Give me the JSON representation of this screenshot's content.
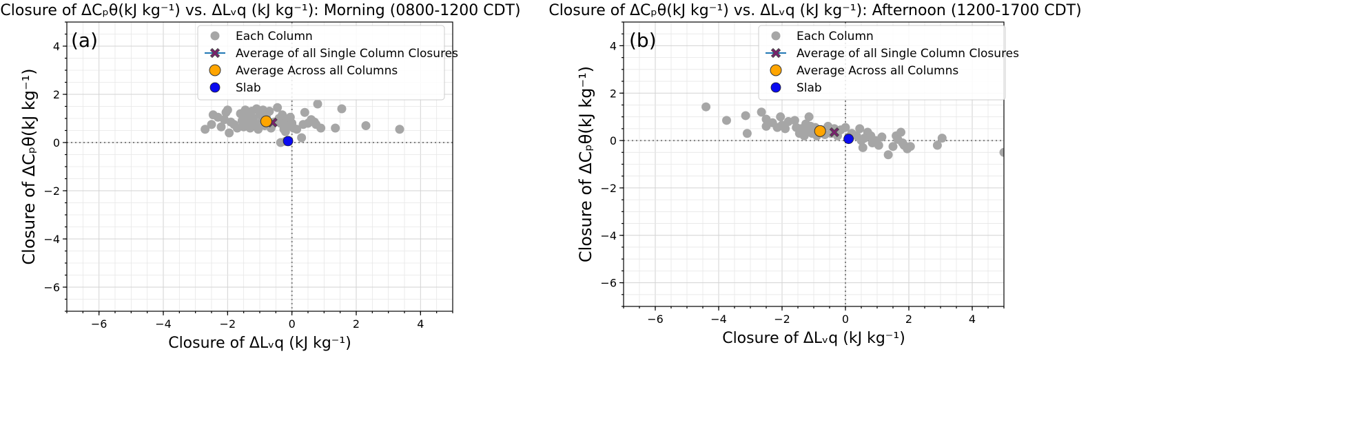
{
  "colors": {
    "each_column": "#a6a6a6",
    "avg_single": "#7a1f6e",
    "avg_single_edge": "#4a4a4a",
    "avg_line": "#1f77b4",
    "avg_across": "#ffa500",
    "slab": "#0a0af0"
  },
  "chart_data": [
    {
      "type": "scatter",
      "panel_label": "(a)",
      "title": "Closure of ΔCₚθ(kJ kg⁻¹) vs. ΔLᵥq (kJ kg⁻¹): Morning (0800-1200 CDT)",
      "xlabel": "Closure of ΔLᵥq (kJ kg⁻¹)",
      "ylabel": "Closure of ΔCₚθ(kJ kg⁻¹)",
      "xlim": [
        -7,
        5
      ],
      "ylim": [
        -7,
        5
      ],
      "xticks": [
        -6,
        -4,
        -2,
        0,
        2,
        4
      ],
      "yticks": [
        -6,
        -4,
        -2,
        0,
        2,
        4
      ],
      "grid": true,
      "legend_position": "upper-center",
      "legend": [
        "Each Column",
        "Average of all Single Column Closures",
        " Average Across all Columns",
        "Slab"
      ],
      "series": [
        {
          "name": "Each Column",
          "points": [
            [
              -2.7,
              0.55
            ],
            [
              -2.5,
              0.75
            ],
            [
              -2.45,
              1.15
            ],
            [
              -2.3,
              1.05
            ],
            [
              -2.2,
              0.65
            ],
            [
              -2.1,
              0.95
            ],
            [
              -2.05,
              1.25
            ],
            [
              -2.0,
              1.35
            ],
            [
              -1.95,
              0.4
            ],
            [
              -1.9,
              0.85
            ],
            [
              -1.8,
              0.75
            ],
            [
              -1.7,
              0.6
            ],
            [
              -1.6,
              1.2
            ],
            [
              -1.55,
              0.9
            ],
            [
              -1.5,
              0.65
            ],
            [
              -1.45,
              1.35
            ],
            [
              -1.4,
              1.05
            ],
            [
              -1.35,
              0.8
            ],
            [
              -1.3,
              0.6
            ],
            [
              -1.25,
              1.3
            ],
            [
              -1.2,
              1.0
            ],
            [
              -1.15,
              0.75
            ],
            [
              -1.1,
              1.4
            ],
            [
              -1.05,
              0.55
            ],
            [
              -1.0,
              1.15
            ],
            [
              -0.95,
              0.85
            ],
            [
              -0.9,
              1.35
            ],
            [
              -0.85,
              0.7
            ],
            [
              -0.8,
              1.1
            ],
            [
              -0.7,
              1.3
            ],
            [
              -0.65,
              0.6
            ],
            [
              -0.55,
              0.85
            ],
            [
              -0.45,
              1.45
            ],
            [
              -0.4,
              1.0
            ],
            [
              -0.35,
              0.8
            ],
            [
              -0.3,
              1.15
            ],
            [
              -0.25,
              0.55
            ],
            [
              -0.2,
              0.45
            ],
            [
              -0.15,
              0.9
            ],
            [
              -0.1,
              0.7
            ],
            [
              -0.05,
              1.05
            ],
            [
              0.0,
              0.8
            ],
            [
              0.05,
              0.6
            ],
            [
              0.15,
              0.55
            ],
            [
              0.3,
              0.2
            ],
            [
              0.35,
              0.75
            ],
            [
              0.4,
              1.25
            ],
            [
              0.5,
              0.8
            ],
            [
              0.6,
              0.95
            ],
            [
              0.7,
              0.85
            ],
            [
              0.75,
              0.75
            ],
            [
              0.8,
              1.6
            ],
            [
              0.9,
              0.6
            ],
            [
              1.35,
              0.6
            ],
            [
              1.55,
              1.4
            ],
            [
              2.3,
              0.7
            ],
            [
              3.35,
              0.55
            ],
            [
              -0.35,
              0.0
            ],
            [
              -0.2,
              0.05
            ]
          ]
        },
        {
          "name": "Average of all Single Column Closures",
          "points": [
            [
              -0.6,
              0.83
            ]
          ]
        },
        {
          "name": " Average Across all Columns",
          "points": [
            [
              -0.8,
              0.88
            ]
          ]
        },
        {
          "name": "Slab",
          "points": [
            [
              -0.12,
              0.06
            ]
          ]
        }
      ]
    },
    {
      "type": "scatter",
      "panel_label": "(b)",
      "title": "Closure of ΔCₚθ(kJ kg⁻¹) vs. ΔLᵥq (kJ kg⁻¹): Afternoon (1200-1700 CDT)",
      "xlabel": "Closure of ΔLᵥq (kJ kg⁻¹)",
      "ylabel": "Closure of ΔCₚθ(kJ kg⁻¹)",
      "xlim": [
        -7,
        5
      ],
      "ylim": [
        -7,
        5
      ],
      "xticks": [
        -6,
        -4,
        -2,
        0,
        2,
        4
      ],
      "yticks": [
        -6,
        -4,
        -2,
        0,
        2,
        4
      ],
      "grid": true,
      "legend_position": "upper-center",
      "legend": [
        "Each Column",
        "Average of all Single Column Closures",
        " Average Across all Columns",
        "Slab"
      ],
      "series": [
        {
          "name": "Each Column",
          "points": [
            [
              -4.4,
              1.42
            ],
            [
              -3.75,
              0.85
            ],
            [
              -3.15,
              1.05
            ],
            [
              -3.1,
              0.3
            ],
            [
              -2.65,
              1.2
            ],
            [
              -2.5,
              0.9
            ],
            [
              -2.5,
              0.6
            ],
            [
              -2.3,
              0.75
            ],
            [
              -2.15,
              0.55
            ],
            [
              -2.05,
              1.0
            ],
            [
              -2.0,
              0.65
            ],
            [
              -1.9,
              0.5
            ],
            [
              -1.8,
              0.8
            ],
            [
              -1.6,
              0.85
            ],
            [
              -1.55,
              0.55
            ],
            [
              -1.45,
              0.3
            ],
            [
              -1.4,
              0.5
            ],
            [
              -1.3,
              0.2
            ],
            [
              -1.25,
              0.7
            ],
            [
              -1.2,
              0.45
            ],
            [
              -1.15,
              1.0
            ],
            [
              -1.1,
              0.6
            ],
            [
              -1.05,
              0.3
            ],
            [
              -0.95,
              0.55
            ],
            [
              -0.9,
              0.2
            ],
            [
              -0.75,
              0.45
            ],
            [
              -0.65,
              0.25
            ],
            [
              -0.55,
              0.6
            ],
            [
              -0.45,
              0.3
            ],
            [
              -0.35,
              0.5
            ],
            [
              -0.25,
              0.2
            ],
            [
              -0.15,
              0.45
            ],
            [
              0.0,
              0.55
            ],
            [
              0.1,
              0.15
            ],
            [
              0.2,
              0.3
            ],
            [
              0.35,
              0.2
            ],
            [
              0.45,
              0.5
            ],
            [
              0.5,
              0.0
            ],
            [
              0.55,
              -0.3
            ],
            [
              0.6,
              0.1
            ],
            [
              0.7,
              0.35
            ],
            [
              0.8,
              0.2
            ],
            [
              0.85,
              -0.1
            ],
            [
              0.95,
              0.0
            ],
            [
              1.05,
              -0.2
            ],
            [
              1.15,
              0.15
            ],
            [
              1.35,
              -0.6
            ],
            [
              1.5,
              -0.25
            ],
            [
              1.6,
              0.2
            ],
            [
              1.65,
              0.05
            ],
            [
              1.75,
              0.35
            ],
            [
              1.8,
              -0.1
            ],
            [
              1.85,
              -0.2
            ],
            [
              1.95,
              -0.35
            ],
            [
              2.05,
              -0.25
            ],
            [
              2.9,
              -0.2
            ],
            [
              3.05,
              0.1
            ],
            [
              5.0,
              -0.5
            ]
          ]
        },
        {
          "name": "Average of all Single Column Closures",
          "points": [
            [
              -0.35,
              0.35
            ]
          ]
        },
        {
          "name": " Average Across all Columns",
          "points": [
            [
              -0.8,
              0.4
            ]
          ]
        },
        {
          "name": "Slab",
          "points": [
            [
              0.1,
              0.07
            ]
          ]
        }
      ]
    }
  ]
}
